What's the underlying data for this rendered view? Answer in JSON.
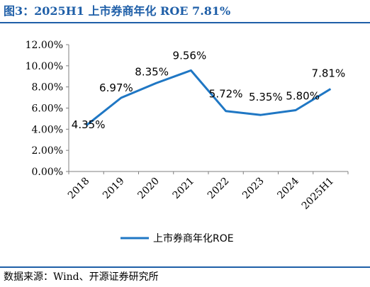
{
  "figure": {
    "title": "图3：2025H1 上市券商年化 ROE 7.81%",
    "source": "数据来源：Wind、开源证券研究所"
  },
  "chart_data": {
    "type": "line",
    "categories": [
      "2018",
      "2019",
      "2020",
      "2021",
      "2022",
      "2023",
      "2024",
      "2025H1"
    ],
    "series": [
      {
        "name": "上市券商年化ROE",
        "values": [
          4.35,
          6.97,
          8.35,
          9.56,
          5.72,
          5.35,
          5.8,
          7.81
        ],
        "labels": [
          "4.35%",
          "6.97%",
          "8.35%",
          "9.56%",
          "5.72%",
          "5.35%",
          "5.80%",
          "7.81%"
        ],
        "color": "#1f77c4"
      }
    ],
    "ylim": [
      0,
      12
    ],
    "yticks": [
      0,
      2,
      4,
      6,
      8,
      10,
      12
    ],
    "ytick_labels": [
      "0.00%",
      "2.00%",
      "4.00%",
      "6.00%",
      "8.00%",
      "10.00%",
      "12.00%"
    ],
    "xlabel": "",
    "ylabel": "",
    "grid": false,
    "legend_position": "bottom"
  }
}
